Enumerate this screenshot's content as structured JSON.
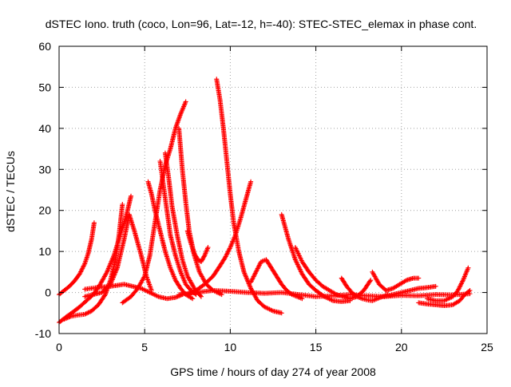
{
  "chart_data": {
    "type": "scatter",
    "title": "dSTEC Iono. truth (coco, Lon=96, Lat=-12, h=-40): STEC-STEC_elemax in phase cont.",
    "xlabel": "GPS time / hours of day 274 of year 2008",
    "ylabel": "dSTEC  / TECUs",
    "xlim": [
      0,
      25
    ],
    "ylim": [
      -10,
      60
    ],
    "xticks": [
      0,
      5,
      10,
      15,
      20,
      25
    ],
    "yticks": [
      -10,
      0,
      10,
      20,
      30,
      40,
      50,
      60
    ],
    "xtick_labels": [
      "0",
      "5",
      "10",
      "15",
      "20",
      "25"
    ],
    "ytick_labels": [
      "-10",
      "0",
      "10",
      "20",
      "30",
      "40",
      "50",
      "60"
    ],
    "grid": true,
    "marker": "plus",
    "color": "#ff0000",
    "series": [
      {
        "x": [
          0.0,
          0.3,
          0.6,
          0.9,
          1.2,
          1.5,
          1.7,
          1.9,
          2.05
        ],
        "y": [
          -0.5,
          0.5,
          1.5,
          2.8,
          4.5,
          7.0,
          9.5,
          13.0,
          17.0
        ]
      },
      {
        "x": [
          0.0,
          0.4,
          0.8,
          1.2,
          1.6,
          2.0,
          2.4,
          2.8,
          3.2,
          3.5,
          3.8,
          4.0,
          4.2
        ],
        "y": [
          -7.3,
          -6.0,
          -4.8,
          -3.5,
          -2.0,
          -0.5,
          2.0,
          5.0,
          9.0,
          13.0,
          17.0,
          20.0,
          23.5
        ]
      },
      {
        "x": [
          0.3,
          0.7,
          1.1,
          1.5,
          1.9,
          2.3,
          2.7,
          3.0,
          3.3,
          3.5,
          3.7
        ],
        "y": [
          -6.5,
          -5.8,
          -5.5,
          -5.3,
          -4.5,
          -3.0,
          -0.5,
          3.0,
          8.0,
          14.0,
          21.5
        ]
      },
      {
        "x": [
          1.5,
          2.0,
          2.5,
          3.0,
          3.4,
          3.8,
          4.1,
          4.4,
          4.8,
          5.1,
          5.4
        ],
        "y": [
          -1.0,
          -0.5,
          0.0,
          2.0,
          6.0,
          13.0,
          19.0,
          15.0,
          9.0,
          4.0,
          0.5
        ]
      },
      {
        "x": [
          1.5,
          2.2,
          3.0,
          3.8,
          4.3,
          4.8,
          5.3,
          5.8,
          6.3,
          6.8,
          7.2
        ],
        "y": [
          0.8,
          1.2,
          1.5,
          2.0,
          1.5,
          1.0,
          0.0,
          -1.0,
          -1.5,
          -1.2,
          -0.5
        ]
      },
      {
        "x": [
          3.7,
          4.2,
          4.6,
          5.0,
          5.3,
          5.6,
          5.9,
          6.2,
          6.5,
          6.8,
          7.1,
          7.4
        ],
        "y": [
          -2.5,
          -1.0,
          1.0,
          4.0,
          9.0,
          17.0,
          25.0,
          31.0,
          35.0,
          40.0,
          43.5,
          46.5
        ]
      },
      {
        "x": [
          5.2,
          5.4,
          5.6,
          5.9,
          6.2,
          6.5,
          6.8,
          7.1,
          7.4,
          7.8
        ],
        "y": [
          27.0,
          24.0,
          20.0,
          15.0,
          10.0,
          6.0,
          3.0,
          1.0,
          -0.5,
          -1.5
        ]
      },
      {
        "x": [
          5.9,
          6.1,
          6.3,
          6.5,
          6.8,
          7.1,
          7.4,
          7.7,
          8.0
        ],
        "y": [
          32.0,
          26.0,
          20.0,
          14.0,
          9.0,
          5.0,
          2.0,
          0.5,
          -0.5
        ]
      },
      {
        "x": [
          6.2,
          6.4,
          6.6,
          6.9,
          7.2,
          7.5,
          7.9,
          8.3
        ],
        "y": [
          34.0,
          28.0,
          21.0,
          14.0,
          8.0,
          4.0,
          1.0,
          -1.0
        ]
      },
      {
        "x": [
          7.0,
          7.2,
          7.4,
          7.6,
          7.9,
          8.2,
          8.6,
          9.0,
          9.5
        ],
        "y": [
          40.0,
          30.0,
          22.0,
          15.0,
          9.0,
          5.0,
          2.0,
          0.5,
          -0.5
        ]
      },
      {
        "x": [
          7.5,
          7.7,
          7.9,
          8.1,
          8.3,
          8.5,
          8.7
        ],
        "y": [
          15.0,
          12.0,
          9.5,
          8.0,
          7.5,
          9.0,
          11.0
        ]
      },
      {
        "x": [
          7.5,
          8.0,
          8.5,
          9.0,
          9.4,
          9.7,
          10.0,
          10.3,
          10.6,
          10.9,
          11.2
        ],
        "y": [
          -0.5,
          0.5,
          2.0,
          4.0,
          6.5,
          8.5,
          11.0,
          14.0,
          18.0,
          22.5,
          27.0
        ]
      },
      {
        "x": [
          9.2,
          9.4,
          9.6,
          9.8,
          10.0,
          10.2,
          10.5,
          10.8,
          11.2,
          11.6,
          12.0,
          12.5,
          13.0
        ],
        "y": [
          52.0,
          47.0,
          40.0,
          32.0,
          24.0,
          17.0,
          10.0,
          5.0,
          1.0,
          -2.0,
          -3.5,
          -4.5,
          -5.0
        ]
      },
      {
        "x": [
          7.0,
          8.0,
          9.0,
          10.0,
          11.0,
          12.0,
          13.0,
          14.0,
          15.0,
          16.0,
          17.0,
          18.0,
          19.0,
          20.0,
          21.0,
          22.0,
          23.0,
          24.0
        ],
        "y": [
          -0.5,
          0.0,
          0.5,
          0.3,
          0.0,
          -0.2,
          0.0,
          -0.5,
          -1.0,
          -0.8,
          -0.5,
          -0.8,
          -1.0,
          -0.7,
          -0.8,
          -0.5,
          -0.6,
          -0.3
        ]
      },
      {
        "x": [
          11.2,
          11.5,
          11.8,
          12.1,
          12.4,
          12.7,
          13.0,
          13.3,
          13.6,
          13.9,
          14.2
        ],
        "y": [
          2.5,
          5.0,
          7.5,
          8.0,
          6.0,
          4.0,
          2.0,
          0.5,
          -0.5,
          -1.0,
          -1.5
        ]
      },
      {
        "x": [
          13.0,
          13.4,
          13.8,
          14.2,
          14.6,
          15.0,
          15.5,
          16.0,
          16.5,
          17.0
        ],
        "y": [
          19.0,
          13.0,
          8.0,
          4.5,
          2.0,
          0.5,
          -1.0,
          -2.0,
          -2.2,
          -2.0
        ]
      },
      {
        "x": [
          13.8,
          14.2,
          14.6,
          15.0,
          15.4,
          15.8,
          16.2,
          16.6,
          17.0,
          17.4,
          17.8,
          18.2
        ],
        "y": [
          11.0,
          7.5,
          5.0,
          3.0,
          1.5,
          0.5,
          -0.5,
          -1.0,
          -1.5,
          -1.0,
          0.5,
          3.0
        ]
      },
      {
        "x": [
          16.5,
          16.8,
          17.1,
          17.4,
          17.7,
          18.0,
          18.3,
          18.6,
          18.9,
          19.2
        ],
        "y": [
          3.5,
          1.5,
          0.0,
          -1.0,
          -1.5,
          -1.8,
          -2.0,
          -1.5,
          -1.0,
          -0.5
        ]
      },
      {
        "x": [
          18.3,
          18.7,
          19.1,
          19.5,
          19.9,
          20.3,
          20.7,
          21.0
        ],
        "y": [
          5.0,
          2.0,
          0.5,
          1.0,
          2.0,
          3.0,
          3.5,
          3.5
        ]
      },
      {
        "x": [
          19.0,
          19.5,
          20.0,
          20.5,
          21.0,
          21.5,
          22.0
        ],
        "y": [
          -1.0,
          -0.5,
          0.0,
          0.5,
          1.0,
          1.2,
          1.5
        ]
      },
      {
        "x": [
          21.0,
          21.5,
          22.0,
          22.5,
          23.0,
          23.4,
          23.7,
          24.0
        ],
        "y": [
          -2.5,
          -2.8,
          -3.0,
          -3.2,
          -3.0,
          -2.0,
          -0.5,
          0.5
        ]
      },
      {
        "x": [
          21.5,
          22.0,
          22.5,
          23.0,
          23.3,
          23.6,
          23.9
        ],
        "y": [
          -1.5,
          -2.0,
          -2.0,
          -1.0,
          0.5,
          3.0,
          6.0
        ]
      }
    ]
  }
}
